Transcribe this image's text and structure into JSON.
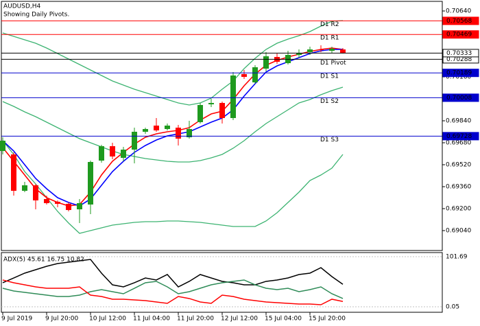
{
  "chart_data": [
    {
      "type": "candlestick",
      "title": "AUDUSD,H4",
      "subtitle": "Showing Daily Pivots.",
      "categories": [
        "9 Jul 2019",
        null,
        null,
        null,
        "9 Jul 20:00",
        null,
        null,
        null,
        "10 Jul 12:00",
        null,
        null,
        null,
        "11 Jul 04:00",
        null,
        null,
        null,
        "11 Jul 20:00",
        null,
        null,
        null,
        "12 Jul 12:00",
        null,
        null,
        null,
        "15 Jul 04:00",
        null,
        null,
        null,
        "15 Jul 20:00",
        null,
        null,
        null
      ],
      "open": [
        0.6962,
        0.69595,
        0.6933,
        0.6937,
        0.6927,
        0.6925,
        0.69235,
        0.69195,
        0.6923,
        0.6955,
        0.69655,
        0.6957,
        0.6963,
        0.6976,
        0.69805,
        0.6978,
        0.6979,
        0.6972,
        0.6983,
        0.6996,
        0.6997,
        0.6986,
        0.7018,
        0.7012,
        0.7022,
        0.70305,
        0.7026,
        0.7032,
        0.7034,
        0.7036,
        0.7035,
        0.7036
      ],
      "high": [
        0.6972,
        0.6961,
        0.69395,
        0.6938,
        0.69295,
        0.6926,
        0.69245,
        0.6927,
        0.6955,
        0.69665,
        0.6968,
        0.6965,
        0.6979,
        0.6979,
        0.6986,
        0.6982,
        0.6981,
        0.6984,
        0.6997,
        0.7,
        0.6998,
        0.70195,
        0.7021,
        0.70245,
        0.7034,
        0.7033,
        0.7035,
        0.7036,
        0.7038,
        0.7039,
        0.7038,
        0.7037
      ],
      "low": [
        0.69595,
        0.69295,
        0.6932,
        0.69195,
        0.6923,
        0.6921,
        0.6918,
        0.69095,
        0.6916,
        0.69535,
        0.6956,
        0.69545,
        0.6953,
        0.69745,
        0.6976,
        0.6977,
        0.6966,
        0.6971,
        0.6982,
        0.6994,
        0.6982,
        0.69845,
        0.70145,
        0.7011,
        0.702,
        0.70255,
        0.7025,
        0.703,
        0.7032,
        0.7034,
        0.70335,
        0.7033
      ],
      "close": [
        0.69695,
        0.6933,
        0.6937,
        0.6926,
        0.6924,
        0.69235,
        0.6919,
        0.6924,
        0.6954,
        0.69655,
        0.6958,
        0.6963,
        0.6976,
        0.6978,
        0.6977,
        0.69805,
        0.6971,
        0.6978,
        0.69955,
        0.6997,
        0.6986,
        0.7017,
        0.7016,
        0.7023,
        0.7031,
        0.7027,
        0.7032,
        0.70335,
        0.7036,
        0.70355,
        0.70365,
        0.70333
      ],
      "up_color": "#1f9a1f",
      "down_color": "#ff0000",
      "overlays": [
        {
          "color": "#3cb371",
          "values": [
            0.7048,
            0.70455,
            0.7043,
            0.70405,
            0.7037,
            0.7033,
            0.7029,
            0.7025,
            0.7021,
            0.7017,
            0.7013,
            0.701,
            0.7007,
            0.70045,
            0.7002,
            0.69995,
            0.6997,
            0.69955,
            0.6997,
            0.70005,
            0.7007,
            0.7013,
            0.7022,
            0.70295,
            0.7036,
            0.70405,
            0.70435,
            0.7046,
            0.7049,
            0.7053,
            0.70565,
            0.7057
          ]
        },
        {
          "color": "#3cb371",
          "values": [
            0.6998,
            0.69945,
            0.69905,
            0.6987,
            0.6983,
            0.6979,
            0.6975,
            0.6971,
            0.6968,
            0.6965,
            0.6962,
            0.69595,
            0.6958,
            0.69565,
            0.69555,
            0.69545,
            0.6954,
            0.6954,
            0.6955,
            0.6957,
            0.69595,
            0.6964,
            0.69695,
            0.6976,
            0.6982,
            0.6987,
            0.6992,
            0.6997,
            0.69995,
            0.7003,
            0.7006,
            0.70085
          ]
        },
        {
          "color": "#3cb371",
          "values": [
            0.69695,
            0.69595,
            0.6947,
            0.6938,
            0.6928,
            0.6918,
            0.69095,
            0.6902,
            0.6904,
            0.6906,
            0.6908,
            0.6909,
            0.691,
            0.69105,
            0.69105,
            0.6911,
            0.6911,
            0.69105,
            0.691,
            0.6909,
            0.6908,
            0.6907,
            0.6907,
            0.6907,
            0.6911,
            0.6917,
            0.69245,
            0.6932,
            0.69405,
            0.69445,
            0.69495,
            0.69595
          ]
        },
        {
          "color": "#ff0000",
          "values": [
            0.69645,
            0.69545,
            0.69445,
            0.69345,
            0.6928,
            0.69245,
            0.6922,
            0.6923,
            0.6932,
            0.69445,
            0.69545,
            0.6961,
            0.6967,
            0.6972,
            0.69745,
            0.6976,
            0.6977,
            0.6979,
            0.69845,
            0.6989,
            0.6991,
            0.69995,
            0.70095,
            0.7018,
            0.70245,
            0.7028,
            0.70305,
            0.70325,
            0.70345,
            0.7036,
            0.7037,
            0.7036
          ]
        },
        {
          "color": "#0000ff",
          "values": [
            0.69695,
            0.6962,
            0.6952,
            0.6942,
            0.69345,
            0.6928,
            0.69245,
            0.6922,
            0.6927,
            0.6937,
            0.6947,
            0.69545,
            0.6961,
            0.6966,
            0.697,
            0.6973,
            0.69745,
            0.6976,
            0.69795,
            0.6983,
            0.6986,
            0.6992,
            0.7002,
            0.7011,
            0.70195,
            0.7024,
            0.7027,
            0.703,
            0.7033,
            0.7035,
            0.7036,
            0.7036
          ]
        }
      ],
      "levels": [
        {
          "label": "D1 R2",
          "value": 0.70568,
          "color": "#ff0000"
        },
        {
          "label": "D1 R1",
          "value": 0.70469,
          "color": "#ff0000"
        },
        {
          "label": "D1 Pivot",
          "value": 0.70288,
          "color": "#000000"
        },
        {
          "label": "D1 S1",
          "value": 0.70189,
          "color": "#0000cd"
        },
        {
          "label": "D1 S2",
          "value": 0.70008,
          "color": "#0000cd"
        },
        {
          "label": "D1 S3",
          "value": 0.69728,
          "color": "#0000cd"
        }
      ],
      "ylim": [
        0.68895,
        0.7071
      ],
      "yticks": [
        {
          "value": 0.7064,
          "label": "0.70640"
        },
        {
          "value": 0.7016,
          "label": "0.70160"
        },
        {
          "value": 0.6984,
          "label": "0.69840"
        },
        {
          "value": 0.6968,
          "label": "0.69680"
        },
        {
          "value": 0.6952,
          "label": "0.69520"
        },
        {
          "value": 0.6936,
          "label": "0.69360"
        },
        {
          "value": 0.692,
          "label": "0.69200"
        },
        {
          "value": 0.6904,
          "label": "0.69040"
        }
      ]
    },
    {
      "type": "line",
      "title": "ADX(5) 45.61 16.75 10.82",
      "series": [
        {
          "color": "#000000",
          "values": [
            48.8,
            58.5,
            68.3,
            75.2,
            82.2,
            87.8,
            90.5,
            93.3,
            96.1,
            68.3,
            44.6,
            40.4,
            48.8,
            58.5,
            54.4,
            65.5,
            40.4,
            51.6,
            65.5,
            58.5,
            51.6,
            48.8,
            44.6,
            44.6,
            51.6,
            54.4,
            58.5,
            65.5,
            68.3,
            79.4,
            61.3,
            45.61
          ]
        },
        {
          "color": "#2e8b57",
          "values": [
            37.6,
            32.1,
            29.3,
            26.5,
            23.7,
            20.9,
            20.9,
            23.7,
            30.7,
            34.9,
            30.7,
            26.5,
            37.6,
            48.8,
            51.6,
            40.4,
            26.5,
            30.7,
            37.6,
            44.6,
            48.8,
            51.6,
            54.4,
            44.6,
            37.6,
            34.9,
            37.6,
            30.7,
            34.9,
            40.4,
            26.5,
            16.75
          ]
        },
        {
          "color": "#ff0000",
          "values": [
            54.4,
            48.8,
            44.6,
            40.4,
            37.6,
            37.6,
            37.6,
            40.4,
            23.7,
            20.9,
            15.4,
            15.4,
            14.0,
            12.6,
            9.8,
            7.0,
            20.9,
            16.8,
            9.8,
            7.0,
            23.7,
            20.9,
            15.4,
            12.6,
            9.8,
            8.4,
            7.0,
            5.6,
            5.6,
            4.2,
            15.4,
            10.82
          ]
        }
      ],
      "ylim": [
        -11.1,
        110.04
      ],
      "yticks": [
        101.69,
        0.05
      ]
    }
  ]
}
